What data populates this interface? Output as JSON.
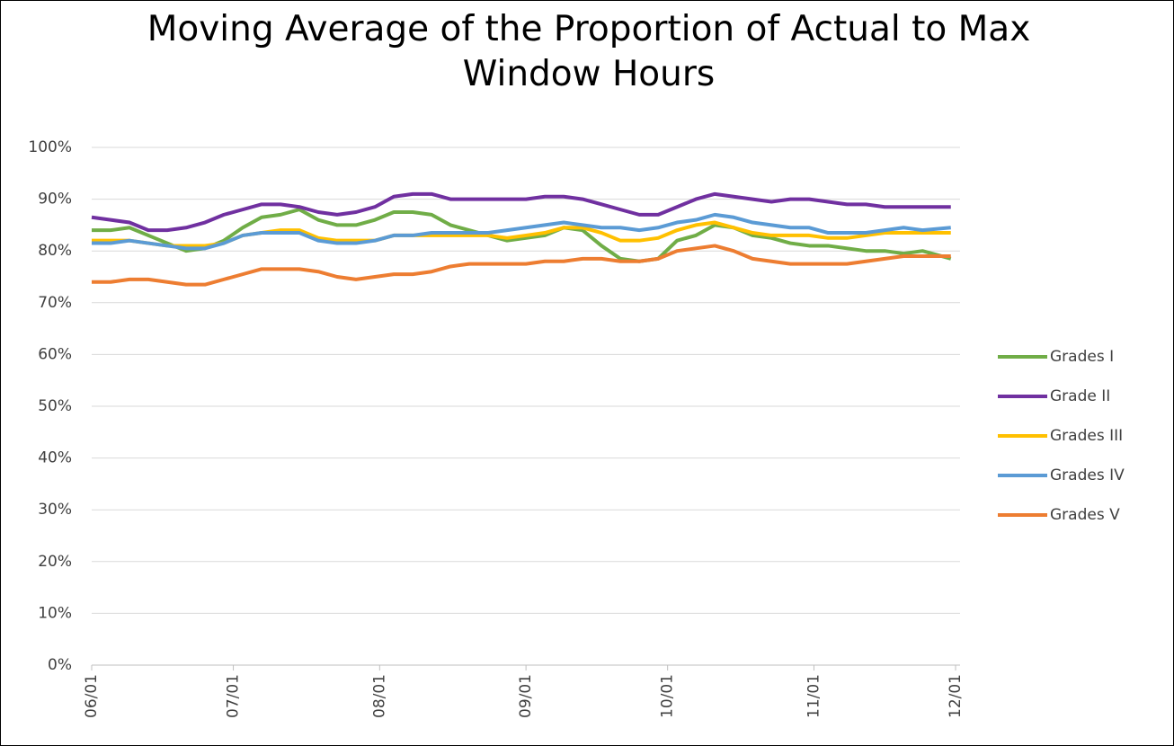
{
  "chart_data": {
    "type": "line",
    "title": "Moving Average of the Proportion of Actual to Max Window Hours",
    "x": [
      "06/01",
      "06/05",
      "06/09",
      "06/13",
      "06/17",
      "06/21",
      "06/25",
      "06/29",
      "07/03",
      "07/07",
      "07/11",
      "07/15",
      "07/19",
      "07/23",
      "07/27",
      "07/31",
      "08/04",
      "08/08",
      "08/12",
      "08/16",
      "08/20",
      "08/24",
      "08/28",
      "09/01",
      "09/05",
      "09/09",
      "09/13",
      "09/17",
      "09/21",
      "09/25",
      "09/29",
      "10/03",
      "10/07",
      "10/11",
      "10/15",
      "10/19",
      "10/23",
      "10/27",
      "10/31",
      "11/04",
      "11/08",
      "11/12",
      "11/16",
      "11/20",
      "11/24",
      "11/30"
    ],
    "xlim": [
      "06/01",
      "12/01"
    ],
    "xticks": [
      "06/01",
      "07/01",
      "08/01",
      "09/01",
      "10/01",
      "11/01",
      "12/01"
    ],
    "ylim": [
      0,
      100
    ],
    "yticks": [
      {
        "value": 0,
        "label": "0%"
      },
      {
        "value": 10,
        "label": "10%"
      },
      {
        "value": 20,
        "label": "20%"
      },
      {
        "value": 30,
        "label": "30%"
      },
      {
        "value": 40,
        "label": "40%"
      },
      {
        "value": 50,
        "label": "50%"
      },
      {
        "value": 60,
        "label": "60%"
      },
      {
        "value": 70,
        "label": "70%"
      },
      {
        "value": 80,
        "label": "80%"
      },
      {
        "value": 90,
        "label": "90%"
      },
      {
        "value": 100,
        "label": "100%"
      }
    ],
    "grid": true,
    "legend": "right",
    "series": [
      {
        "name": "Grades I",
        "color": "#70ad47",
        "values": [
          84,
          84,
          84.5,
          83,
          81.5,
          80,
          80.5,
          82,
          84.5,
          86.5,
          87,
          88,
          86,
          85,
          85,
          86,
          87.5,
          87.5,
          87,
          85,
          84,
          83,
          82,
          82.5,
          83,
          84.5,
          84,
          81,
          78.5,
          78,
          78.5,
          82,
          83,
          85,
          84.5,
          83,
          82.5,
          81.5,
          81,
          81,
          80.5,
          80,
          80,
          79.5,
          80,
          78.5
        ]
      },
      {
        "name": "Grade II",
        "color": "#7030a0",
        "values": [
          86.5,
          86,
          85.5,
          84,
          84,
          84.5,
          85.5,
          87,
          88,
          89,
          89,
          88.5,
          87.5,
          87,
          87.5,
          88.5,
          90.5,
          91,
          91,
          90,
          90,
          90,
          90,
          90,
          90.5,
          90.5,
          90,
          89,
          88,
          87,
          87,
          88.5,
          90,
          91,
          90.5,
          90,
          89.5,
          90,
          90,
          89.5,
          89,
          89,
          88.5,
          88.5,
          88.5,
          88.5
        ]
      },
      {
        "name": "Grades III",
        "color": "#ffc000",
        "values": [
          82,
          82,
          82,
          81.5,
          81,
          81,
          81,
          81.5,
          83,
          83.5,
          84,
          84,
          82.5,
          82,
          82,
          82,
          83,
          83,
          83,
          83,
          83,
          83,
          82.5,
          83,
          83.5,
          84.5,
          84.5,
          83.5,
          82,
          82,
          82.5,
          84,
          85,
          85.5,
          84.5,
          83.5,
          83,
          83,
          83,
          82.5,
          82.5,
          83,
          83.5,
          83.5,
          83.5,
          83.5
        ]
      },
      {
        "name": "Grades IV",
        "color": "#5b9bd5",
        "values": [
          81.5,
          81.5,
          82,
          81.5,
          81,
          80.5,
          80.5,
          81.5,
          83,
          83.5,
          83.5,
          83.5,
          82,
          81.5,
          81.5,
          82,
          83,
          83,
          83.5,
          83.5,
          83.5,
          83.5,
          84,
          84.5,
          85,
          85.5,
          85,
          84.5,
          84.5,
          84,
          84.5,
          85.5,
          86,
          87,
          86.5,
          85.5,
          85,
          84.5,
          84.5,
          83.5,
          83.5,
          83.5,
          84,
          84.5,
          84,
          84.5
        ]
      },
      {
        "name": "Grades V",
        "color": "#ed7d31",
        "values": [
          74,
          74,
          74.5,
          74.5,
          74,
          73.5,
          73.5,
          74.5,
          75.5,
          76.5,
          76.5,
          76.5,
          76,
          75,
          74.5,
          75,
          75.5,
          75.5,
          76,
          77,
          77.5,
          77.5,
          77.5,
          77.5,
          78,
          78,
          78.5,
          78.5,
          78,
          78,
          78.5,
          80,
          80.5,
          81,
          80,
          78.5,
          78,
          77.5,
          77.5,
          77.5,
          77.5,
          78,
          78.5,
          79,
          79,
          79
        ]
      }
    ]
  }
}
